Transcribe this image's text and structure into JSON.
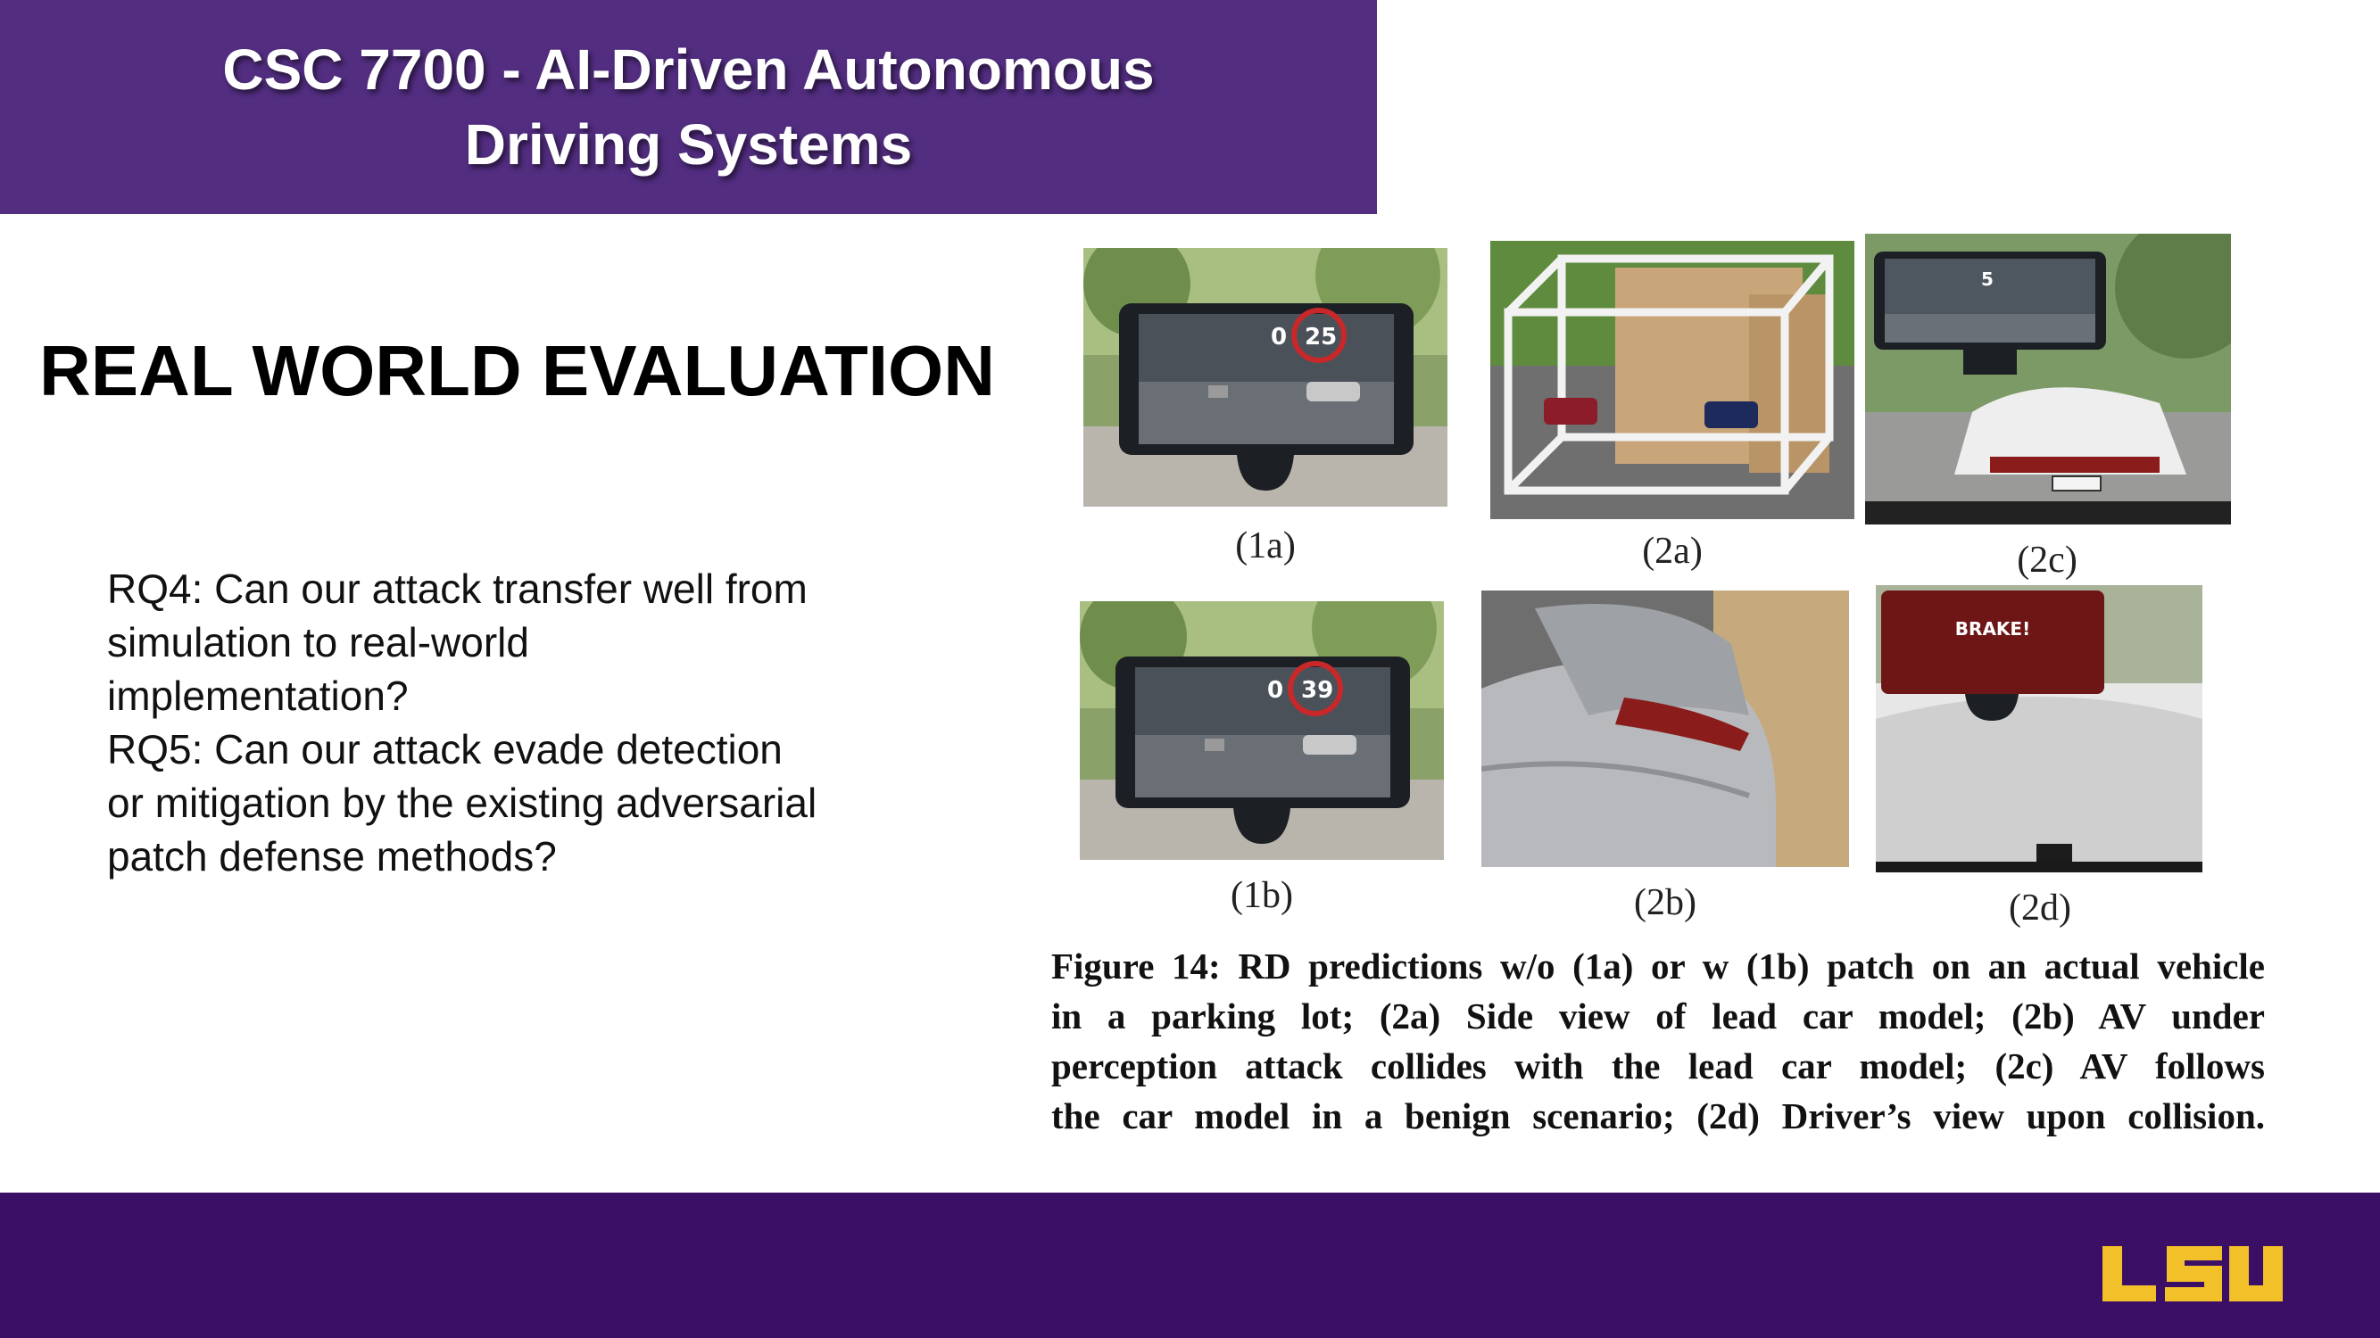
{
  "header": {
    "title_line1": "CSC 7700 - AI-Driven Autonomous",
    "title_line2": "Driving Systems"
  },
  "section_title": "REAL WORLD EVALUATION",
  "questions": {
    "rq4": "RQ4: Can our attack transfer well from simulation to real-world implementation?",
    "rq5": "RQ5: Can our attack evade detection or mitigation by the existing adversarial patch defense methods?"
  },
  "figure": {
    "panels": {
      "p1a": {
        "label": "(1a)",
        "hud_speed": "0",
        "hud_value": "25"
      },
      "p1b": {
        "label": "(1b)",
        "hud_speed": "0",
        "hud_value": "39"
      },
      "p2a": {
        "label": "(2a)"
      },
      "p2b": {
        "label": "(2b)"
      },
      "p2c": {
        "label": "(2c)",
        "hud_value": "5"
      },
      "p2d": {
        "label": "(2d)",
        "alert_text": "BRAKE!"
      }
    },
    "caption_lines": [
      "Figure 14: RD predictions w/o (1a) or w (1b) patch on an actual vehicle",
      "in a parking lot; (2a) Side view of lead car model; (2b) AV under",
      "perception attack collides with the lead car model; (2c) AV follows",
      "the car model in a benign scenario; (2d) Driver’s view upon collision."
    ]
  },
  "footer": {
    "logo_text": "LSU"
  },
  "colors": {
    "header_purple": "#522d80",
    "footer_purple": "#3c0f66",
    "lsu_gold": "#f2c029"
  }
}
